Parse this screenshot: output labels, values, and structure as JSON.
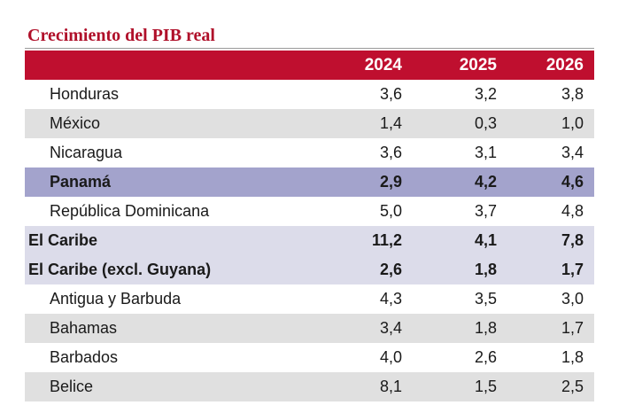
{
  "title": "Crecimiento del PIB real",
  "columns": [
    "2024",
    "2025",
    "2026"
  ],
  "rows": [
    {
      "name": "Honduras",
      "v2024": "3,6",
      "v2025": "3,2",
      "v2026": "3,8"
    },
    {
      "name": "México",
      "v2024": "1,4",
      "v2025": "0,3",
      "v2026": "1,0"
    },
    {
      "name": "Nicaragua",
      "v2024": "3,6",
      "v2025": "3,1",
      "v2026": "3,4"
    },
    {
      "name": "Panamá",
      "v2024": "2,9",
      "v2025": "4,2",
      "v2026": "4,6"
    },
    {
      "name": "República Dominicana",
      "v2024": "5,0",
      "v2025": "3,7",
      "v2026": "4,8"
    },
    {
      "name": "El Caribe",
      "v2024": "11,2",
      "v2025": "4,1",
      "v2026": "7,8"
    },
    {
      "name": "El Caribe (excl. Guyana)",
      "v2024": "2,6",
      "v2025": "1,8",
      "v2026": "1,7"
    },
    {
      "name": "Antigua y Barbuda",
      "v2024": "4,3",
      "v2025": "3,5",
      "v2026": "3,0"
    },
    {
      "name": "Bahamas",
      "v2024": "3,4",
      "v2025": "1,8",
      "v2026": "1,7"
    },
    {
      "name": "Barbados",
      "v2024": "4,0",
      "v2025": "2,6",
      "v2026": "1,8"
    },
    {
      "name": "Belice",
      "v2024": "8,1",
      "v2025": "1,5",
      "v2026": "2,5"
    }
  ],
  "colors": {
    "title": "#b0102a",
    "header_bg": "#bf0f2f",
    "highlight_country": "#a3a3cc",
    "highlight_region": "#dcdcea",
    "stripe": "#e0e0e0"
  }
}
